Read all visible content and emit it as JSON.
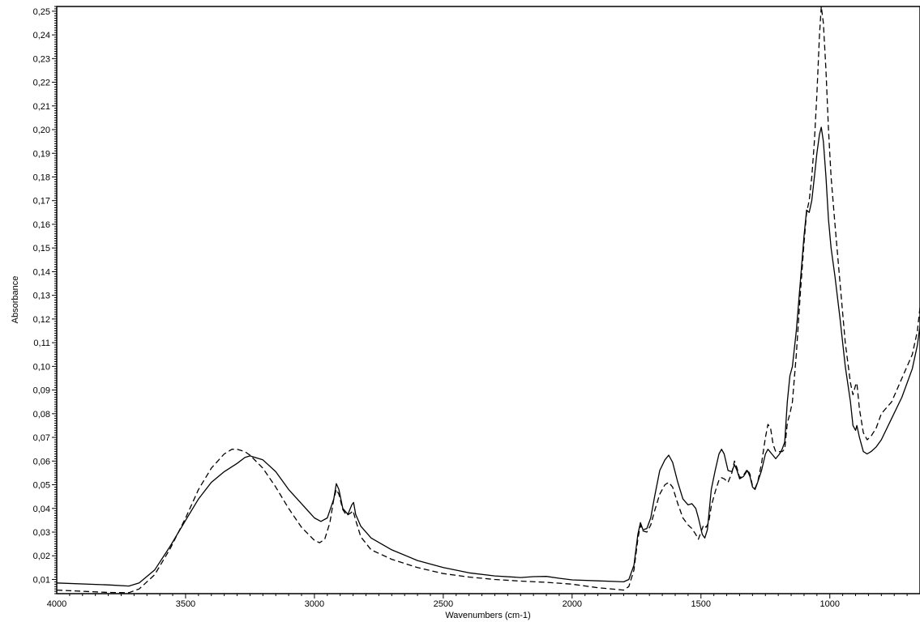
{
  "chart_data": {
    "type": "line",
    "title": "",
    "xlabel": "Wavenumbers (cm-1)",
    "ylabel": "Absorbance",
    "xlim": [
      4000,
      650
    ],
    "ylim": [
      0.004,
      0.252
    ],
    "x_ticks": [
      4000,
      3500,
      3000,
      2500,
      2000,
      1500,
      1000
    ],
    "x_tick_labels": [
      "4000",
      "3500",
      "3000",
      "2500",
      "2000",
      "1500",
      "1000"
    ],
    "y_ticks": [
      0.01,
      0.02,
      0.03,
      0.04,
      0.05,
      0.06,
      0.07,
      0.08,
      0.09,
      0.1,
      0.11,
      0.12,
      0.13,
      0.14,
      0.15,
      0.16,
      0.17,
      0.18,
      0.19,
      0.2,
      0.21,
      0.22,
      0.23,
      0.24,
      0.25
    ],
    "y_tick_labels": [
      "0,01",
      "0,02",
      "0,03",
      "0,04",
      "0,05",
      "0,06",
      "0,07",
      "0,08",
      "0,09",
      "0,10",
      "0,11",
      "0,12",
      "0,13",
      "0,14",
      "0,15",
      "0,16",
      "0,17",
      "0,18",
      "0,19",
      "0,20",
      "0,21",
      "0,22",
      "0,23",
      "0,24",
      "0,25"
    ],
    "grid": false,
    "series": [
      {
        "style": "solid",
        "color": "#000000",
        "points": [
          [
            4000,
            0.0085
          ],
          [
            3800,
            0.0077
          ],
          [
            3720,
            0.0072
          ],
          [
            3680,
            0.0085
          ],
          [
            3620,
            0.014
          ],
          [
            3560,
            0.024
          ],
          [
            3500,
            0.035
          ],
          [
            3450,
            0.044
          ],
          [
            3400,
            0.051
          ],
          [
            3350,
            0.0555
          ],
          [
            3300,
            0.059
          ],
          [
            3270,
            0.0615
          ],
          [
            3250,
            0.0622
          ],
          [
            3200,
            0.0605
          ],
          [
            3150,
            0.0555
          ],
          [
            3100,
            0.048
          ],
          [
            3050,
            0.042
          ],
          [
            3000,
            0.036
          ],
          [
            2975,
            0.0345
          ],
          [
            2950,
            0.036
          ],
          [
            2925,
            0.044
          ],
          [
            2915,
            0.0505
          ],
          [
            2905,
            0.048
          ],
          [
            2890,
            0.04
          ],
          [
            2870,
            0.0375
          ],
          [
            2855,
            0.0415
          ],
          [
            2848,
            0.0425
          ],
          [
            2840,
            0.0375
          ],
          [
            2820,
            0.0325
          ],
          [
            2780,
            0.0275
          ],
          [
            2700,
            0.0225
          ],
          [
            2600,
            0.018
          ],
          [
            2500,
            0.015
          ],
          [
            2400,
            0.0128
          ],
          [
            2300,
            0.0115
          ],
          [
            2200,
            0.0108
          ],
          [
            2150,
            0.0112
          ],
          [
            2100,
            0.0113
          ],
          [
            2050,
            0.0105
          ],
          [
            2000,
            0.0098
          ],
          [
            1900,
            0.0094
          ],
          [
            1800,
            0.009
          ],
          [
            1780,
            0.01
          ],
          [
            1760,
            0.016
          ],
          [
            1745,
            0.029
          ],
          [
            1735,
            0.034
          ],
          [
            1725,
            0.031
          ],
          [
            1710,
            0.0315
          ],
          [
            1695,
            0.036
          ],
          [
            1680,
            0.045
          ],
          [
            1660,
            0.056
          ],
          [
            1640,
            0.0605
          ],
          [
            1625,
            0.0625
          ],
          [
            1610,
            0.0595
          ],
          [
            1590,
            0.051
          ],
          [
            1570,
            0.044
          ],
          [
            1550,
            0.0415
          ],
          [
            1535,
            0.042
          ],
          [
            1520,
            0.04
          ],
          [
            1510,
            0.036
          ],
          [
            1495,
            0.029
          ],
          [
            1485,
            0.0275
          ],
          [
            1475,
            0.031
          ],
          [
            1460,
            0.048
          ],
          [
            1445,
            0.056
          ],
          [
            1430,
            0.063
          ],
          [
            1420,
            0.065
          ],
          [
            1410,
            0.063
          ],
          [
            1395,
            0.056
          ],
          [
            1380,
            0.0555
          ],
          [
            1370,
            0.0585
          ],
          [
            1360,
            0.056
          ],
          [
            1350,
            0.0525
          ],
          [
            1335,
            0.0535
          ],
          [
            1320,
            0.056
          ],
          [
            1310,
            0.0535
          ],
          [
            1300,
            0.049
          ],
          [
            1290,
            0.048
          ],
          [
            1280,
            0.051
          ],
          [
            1265,
            0.056
          ],
          [
            1250,
            0.063
          ],
          [
            1240,
            0.065
          ],
          [
            1225,
            0.063
          ],
          [
            1210,
            0.061
          ],
          [
            1195,
            0.063
          ],
          [
            1185,
            0.065
          ],
          [
            1175,
            0.068
          ],
          [
            1165,
            0.085
          ],
          [
            1155,
            0.096
          ],
          [
            1145,
            0.1
          ],
          [
            1130,
            0.115
          ],
          [
            1115,
            0.135
          ],
          [
            1100,
            0.155
          ],
          [
            1090,
            0.166
          ],
          [
            1080,
            0.165
          ],
          [
            1070,
            0.17
          ],
          [
            1060,
            0.18
          ],
          [
            1050,
            0.19
          ],
          [
            1040,
            0.198
          ],
          [
            1033,
            0.201
          ],
          [
            1025,
            0.195
          ],
          [
            1015,
            0.18
          ],
          [
            1005,
            0.162
          ],
          [
            995,
            0.15
          ],
          [
            980,
            0.138
          ],
          [
            960,
            0.12
          ],
          [
            940,
            0.1
          ],
          [
            920,
            0.085
          ],
          [
            910,
            0.075
          ],
          [
            900,
            0.073
          ],
          [
            895,
            0.075
          ],
          [
            885,
            0.07
          ],
          [
            870,
            0.064
          ],
          [
            855,
            0.063
          ],
          [
            840,
            0.064
          ],
          [
            820,
            0.066
          ],
          [
            800,
            0.069
          ],
          [
            760,
            0.078
          ],
          [
            720,
            0.087
          ],
          [
            680,
            0.099
          ],
          [
            660,
            0.109
          ],
          [
            650,
            0.117
          ]
        ]
      },
      {
        "style": "dashed",
        "color": "#000000",
        "points": [
          [
            4000,
            0.0055
          ],
          [
            3800,
            0.0045
          ],
          [
            3720,
            0.0044
          ],
          [
            3680,
            0.006
          ],
          [
            3620,
            0.012
          ],
          [
            3560,
            0.023
          ],
          [
            3500,
            0.036
          ],
          [
            3450,
            0.048
          ],
          [
            3400,
            0.057
          ],
          [
            3350,
            0.063
          ],
          [
            3320,
            0.065
          ],
          [
            3300,
            0.065
          ],
          [
            3270,
            0.064
          ],
          [
            3250,
            0.0625
          ],
          [
            3200,
            0.057
          ],
          [
            3150,
            0.049
          ],
          [
            3100,
            0.04
          ],
          [
            3050,
            0.032
          ],
          [
            3000,
            0.0265
          ],
          [
            2980,
            0.0255
          ],
          [
            2960,
            0.027
          ],
          [
            2940,
            0.034
          ],
          [
            2925,
            0.044
          ],
          [
            2915,
            0.048
          ],
          [
            2905,
            0.046
          ],
          [
            2890,
            0.0395
          ],
          [
            2875,
            0.037
          ],
          [
            2860,
            0.038
          ],
          [
            2850,
            0.039
          ],
          [
            2840,
            0.035
          ],
          [
            2820,
            0.028
          ],
          [
            2780,
            0.0225
          ],
          [
            2700,
            0.0185
          ],
          [
            2600,
            0.015
          ],
          [
            2500,
            0.0125
          ],
          [
            2400,
            0.011
          ],
          [
            2300,
            0.01
          ],
          [
            2200,
            0.0093
          ],
          [
            2100,
            0.0088
          ],
          [
            2000,
            0.008
          ],
          [
            1900,
            0.0065
          ],
          [
            1800,
            0.0055
          ],
          [
            1780,
            0.007
          ],
          [
            1760,
            0.014
          ],
          [
            1745,
            0.027
          ],
          [
            1735,
            0.033
          ],
          [
            1725,
            0.0305
          ],
          [
            1710,
            0.03
          ],
          [
            1695,
            0.033
          ],
          [
            1680,
            0.039
          ],
          [
            1660,
            0.046
          ],
          [
            1640,
            0.05
          ],
          [
            1625,
            0.051
          ],
          [
            1610,
            0.049
          ],
          [
            1590,
            0.042
          ],
          [
            1570,
            0.036
          ],
          [
            1550,
            0.033
          ],
          [
            1535,
            0.0315
          ],
          [
            1520,
            0.029
          ],
          [
            1510,
            0.027
          ],
          [
            1500,
            0.03
          ],
          [
            1490,
            0.033
          ],
          [
            1480,
            0.032
          ],
          [
            1470,
            0.034
          ],
          [
            1460,
            0.041
          ],
          [
            1445,
            0.047
          ],
          [
            1430,
            0.052
          ],
          [
            1420,
            0.053
          ],
          [
            1410,
            0.0525
          ],
          [
            1395,
            0.051
          ],
          [
            1380,
            0.055
          ],
          [
            1370,
            0.06
          ],
          [
            1360,
            0.057
          ],
          [
            1350,
            0.053
          ],
          [
            1335,
            0.054
          ],
          [
            1320,
            0.0565
          ],
          [
            1310,
            0.0545
          ],
          [
            1300,
            0.0495
          ],
          [
            1290,
            0.0485
          ],
          [
            1280,
            0.051
          ],
          [
            1265,
            0.059
          ],
          [
            1250,
            0.07
          ],
          [
            1240,
            0.0755
          ],
          [
            1230,
            0.074
          ],
          [
            1220,
            0.067
          ],
          [
            1210,
            0.064
          ],
          [
            1195,
            0.064
          ],
          [
            1185,
            0.064
          ],
          [
            1175,
            0.065
          ],
          [
            1165,
            0.076
          ],
          [
            1155,
            0.08
          ],
          [
            1145,
            0.085
          ],
          [
            1130,
            0.105
          ],
          [
            1115,
            0.13
          ],
          [
            1100,
            0.152
          ],
          [
            1090,
            0.165
          ],
          [
            1080,
            0.17
          ],
          [
            1070,
            0.18
          ],
          [
            1060,
            0.195
          ],
          [
            1050,
            0.215
          ],
          [
            1040,
            0.24
          ],
          [
            1033,
            0.252
          ],
          [
            1025,
            0.245
          ],
          [
            1015,
            0.225
          ],
          [
            1005,
            0.2
          ],
          [
            995,
            0.18
          ],
          [
            980,
            0.16
          ],
          [
            960,
            0.135
          ],
          [
            940,
            0.11
          ],
          [
            920,
            0.093
          ],
          [
            910,
            0.088
          ],
          [
            900,
            0.092
          ],
          [
            895,
            0.093
          ],
          [
            885,
            0.082
          ],
          [
            870,
            0.072
          ],
          [
            855,
            0.069
          ],
          [
            840,
            0.0705
          ],
          [
            820,
            0.074
          ],
          [
            800,
            0.08
          ],
          [
            760,
            0.085
          ],
          [
            720,
            0.095
          ],
          [
            680,
            0.105
          ],
          [
            660,
            0.115
          ],
          [
            650,
            0.125
          ]
        ]
      }
    ]
  }
}
